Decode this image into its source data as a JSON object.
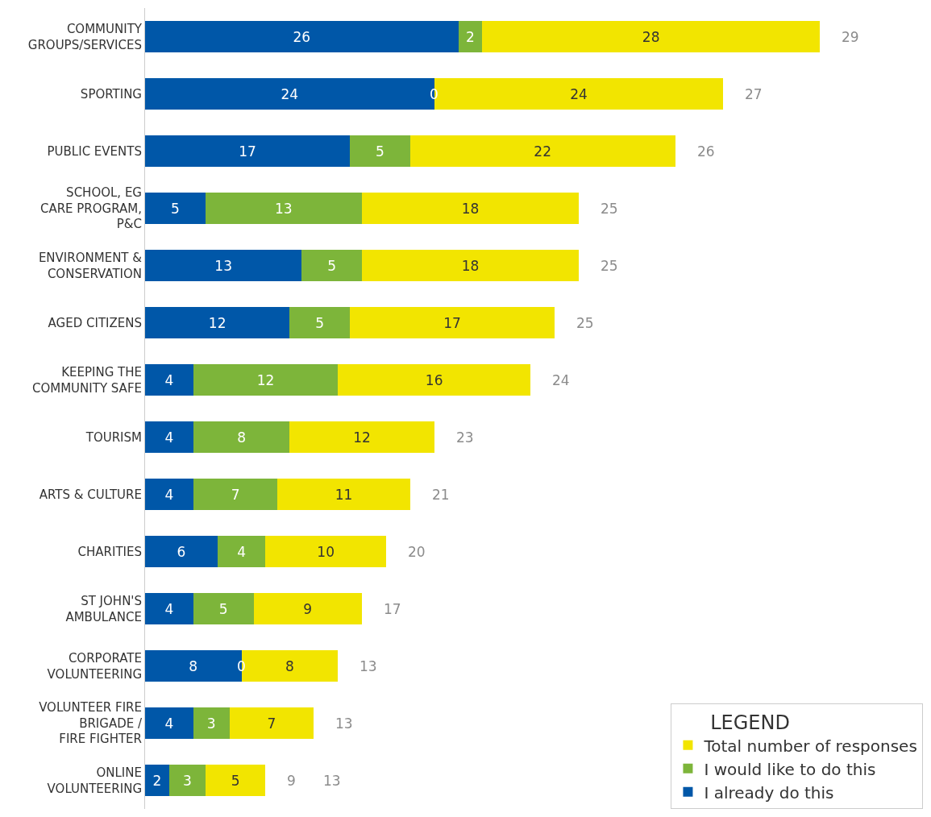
{
  "chart_data": {
    "type": "bar",
    "orientation": "horizontal",
    "stacked": true,
    "data_labels": true,
    "categories": [
      "COMMUNITY\nGROUPS/SERVICES",
      "SPORTING",
      "PUBLIC EVENTS",
      "SCHOOL, EG\nCARE PROGRAM,\nP&C",
      "ENVIRONMENT &\nCONSERVATION",
      "AGED CITIZENS",
      "KEEPING THE\nCOMMUNITY SAFE",
      "TOURISM",
      "ARTS & CULTURE",
      "CHARITIES",
      "ST JOHN'S\nAMBULANCE",
      "CORPORATE\nVOLUNTEERING",
      "VOLUNTEER FIRE\nBRIGADE /\nFIRE FIGHTER",
      "ONLINE\nVOLUNTEERING"
    ],
    "series": [
      {
        "name": "I already do this",
        "color": "#0057a8",
        "values": [
          26,
          24,
          17,
          5,
          13,
          12,
          4,
          4,
          4,
          6,
          4,
          8,
          4,
          2
        ]
      },
      {
        "name": "I would like to do this",
        "color": "#7db53a",
        "values": [
          2,
          0,
          5,
          13,
          5,
          5,
          12,
          8,
          7,
          4,
          5,
          0,
          3,
          3
        ],
        "value_labels": [
          "2",
          null,
          "5",
          "13",
          "5",
          "5",
          "12",
          "8",
          "7",
          "4",
          "5",
          null,
          "3",
          "3"
        ]
      },
      {
        "name": "Total number of responses",
        "color": "#f2e500",
        "values": [
          28,
          24,
          22,
          18,
          18,
          17,
          16,
          12,
          11,
          10,
          9,
          8,
          7,
          5
        ]
      }
    ],
    "legend": "bottom right",
    "legend_title": "LEGEND",
    "annotations": [
      {
        "text": "0",
        "x": 24,
        "y": "SPORTING"
      },
      {
        "text": "0",
        "x": 8,
        "y": "CORPORATE\nVOLUNTEERING"
      },
      "29",
      "27",
      "26",
      "25",
      "25",
      "25",
      "24",
      "23",
      "21",
      "20",
      "17",
      "13",
      "13",
      "9",
      "13"
    ]
  }
}
